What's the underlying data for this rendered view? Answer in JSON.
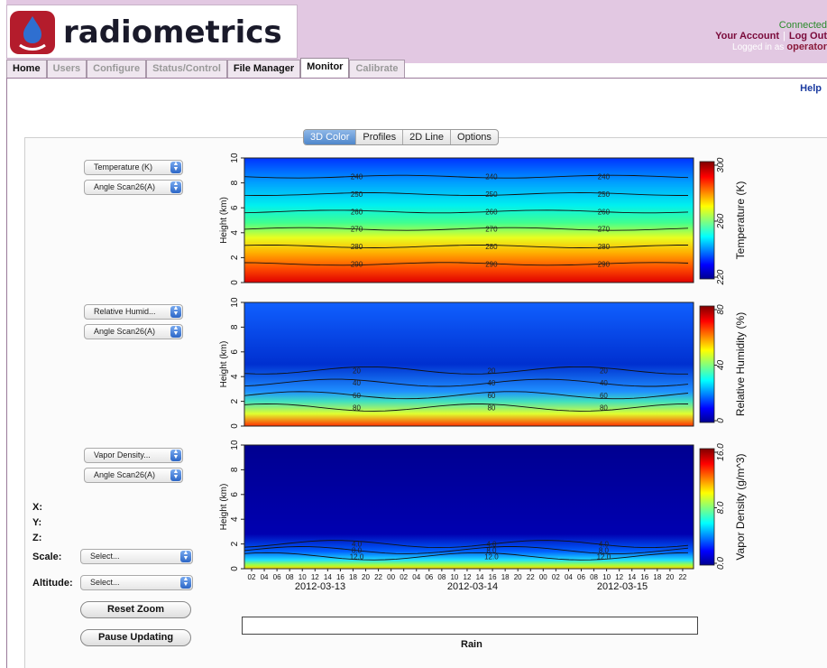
{
  "header": {
    "logo_text": "radiometrics",
    "status": "Connected",
    "your_account": "Your Account",
    "logout": "Log Out",
    "logged_in_as": "Logged in as",
    "username": "operator"
  },
  "tabs": [
    {
      "label": "Home",
      "state": "normal"
    },
    {
      "label": "Users",
      "state": "disabled"
    },
    {
      "label": "Configure",
      "state": "disabled"
    },
    {
      "label": "Status/Control",
      "state": "disabled"
    },
    {
      "label": "File Manager",
      "state": "normal"
    },
    {
      "label": "Monitor",
      "state": "active"
    },
    {
      "label": "Calibrate",
      "state": "disabled"
    }
  ],
  "help": "Help",
  "view_tabs": [
    "3D Color",
    "Profiles",
    "2D Line",
    "Options"
  ],
  "selectors": {
    "plot1_var": "Temperature (K)",
    "plot1_scan": "Angle Scan26(A)",
    "plot2_var": "Relative Humid...",
    "plot2_scan": "Angle Scan26(A)",
    "plot3_var": "Vapor Density...",
    "plot3_scan": "Angle Scan26(A)"
  },
  "readout": {
    "x": "X:",
    "y": "Y:",
    "z": "Z:"
  },
  "controls": {
    "scale_label": "Scale:",
    "scale_value": "Select...",
    "altitude_label": "Altitude:",
    "altitude_value": "Select...",
    "reset_zoom": "Reset Zoom",
    "pause_updating": "Pause Updating"
  },
  "rain_label": "Rain",
  "chart_data": [
    {
      "type": "heatmap",
      "ylabel": "Height (km)",
      "yticks": [
        0,
        2,
        4,
        6,
        8,
        10
      ],
      "colorbar_label": "Temperature (K)",
      "colorbar_ticks": [
        220,
        260,
        300
      ],
      "contour_labels": [
        240,
        250,
        260,
        270,
        280,
        290
      ]
    },
    {
      "type": "heatmap",
      "ylabel": "Height (km)",
      "yticks": [
        0,
        2,
        4,
        6,
        8,
        10
      ],
      "colorbar_label": "Relative Humidity (%)",
      "colorbar_ticks": [
        0,
        40,
        80
      ],
      "contour_labels": [
        20,
        40,
        60,
        80
      ]
    },
    {
      "type": "heatmap",
      "ylabel": "Height (km)",
      "yticks": [
        0,
        2,
        4,
        6,
        8,
        10
      ],
      "colorbar_label": "Vapor Density (g/m^3)",
      "colorbar_ticks": [
        "0.0",
        "8.0",
        "16.0"
      ],
      "contour_labels": [
        "4.0",
        "8.0",
        "12.0"
      ],
      "xtick_hours": [
        "02",
        "04",
        "06",
        "08",
        "10",
        "12",
        "14",
        "16",
        "18",
        "20",
        "22",
        "00",
        "02",
        "04",
        "06",
        "08",
        "10",
        "12",
        "14",
        "16",
        "18",
        "20",
        "22",
        "00",
        "02",
        "04",
        "06",
        "08",
        "10",
        "12",
        "14",
        "16",
        "18",
        "20",
        "22"
      ],
      "dates": [
        "2012-03-13",
        "2012-03-14",
        "2012-03-15"
      ]
    }
  ]
}
